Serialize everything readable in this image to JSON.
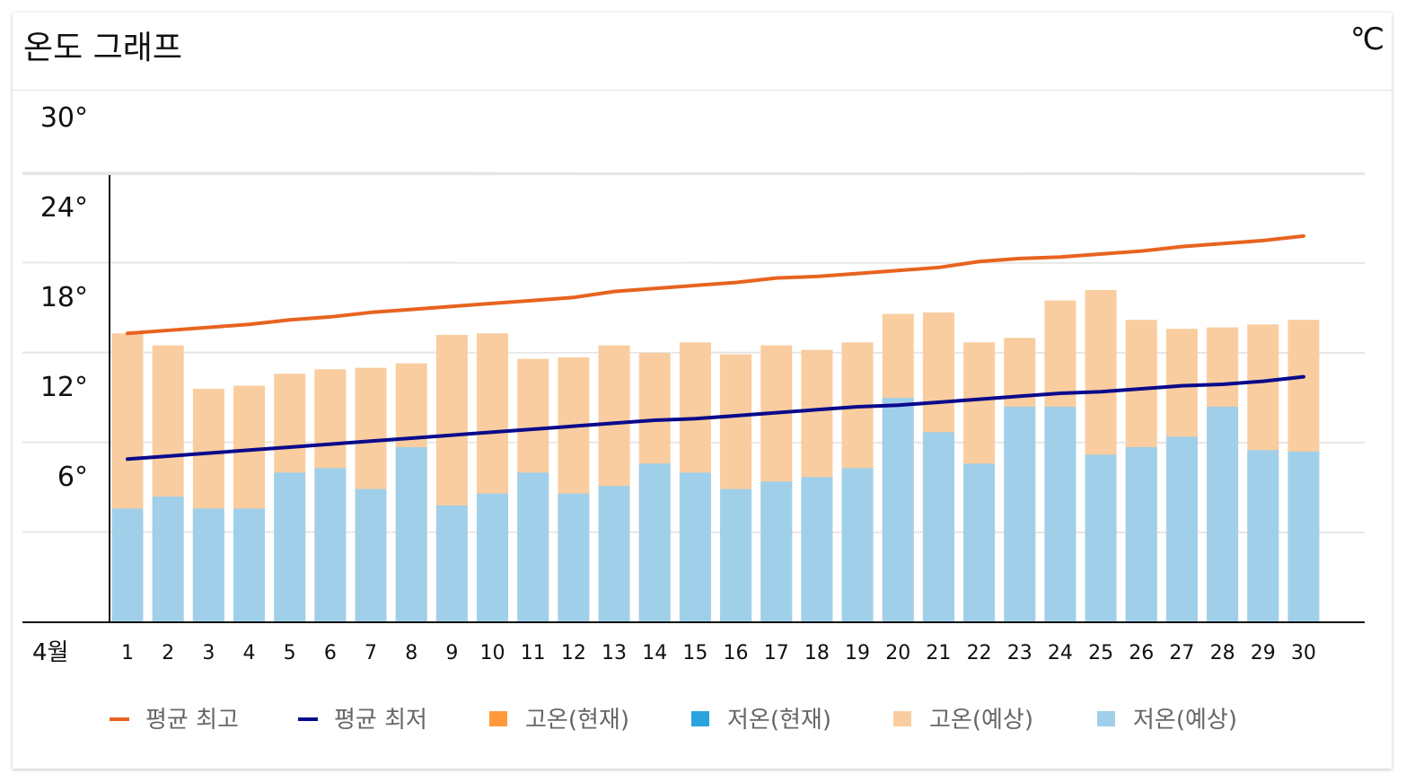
{
  "header": {
    "title": "온도 그래프",
    "unit": "℃"
  },
  "colors": {
    "avg_high": "#E8631F",
    "avg_low": "#0A0A8C",
    "high_current": "#FF9A3C",
    "low_current": "#2AA3E0",
    "high_forecast": "#F9CD9F",
    "low_forecast": "#A0CFEA",
    "grid": "#E6E6E6",
    "axis": "#111111"
  },
  "chart_data": {
    "type": "bar",
    "title": "",
    "x_axis_label": "4월",
    "categories": [
      "1",
      "2",
      "3",
      "4",
      "5",
      "6",
      "7",
      "8",
      "9",
      "10",
      "11",
      "12",
      "13",
      "14",
      "15",
      "16",
      "17",
      "18",
      "19",
      "20",
      "21",
      "22",
      "23",
      "24",
      "25",
      "26",
      "27",
      "28",
      "29",
      "30"
    ],
    "yticks": [
      "6°",
      "12°",
      "18°",
      "24°",
      "30°"
    ],
    "ylim": [
      0,
      30
    ],
    "grid": true,
    "legend_position": "bottom",
    "series": [
      {
        "name": "고온(예상)",
        "type": "bar",
        "values": [
          19.3,
          18.5,
          15.6,
          15.8,
          16.6,
          16.9,
          17.0,
          17.3,
          19.2,
          19.3,
          17.6,
          17.7,
          18.5,
          18.0,
          18.7,
          17.9,
          18.5,
          18.2,
          18.7,
          20.6,
          20.7,
          18.7,
          19.0,
          21.5,
          22.2,
          20.2,
          19.6,
          19.7,
          19.9,
          20.2
        ]
      },
      {
        "name": "저온(예상)",
        "type": "bar",
        "values": [
          7.6,
          8.4,
          7.6,
          7.6,
          10.0,
          10.3,
          8.9,
          11.7,
          7.8,
          8.6,
          10.0,
          8.6,
          9.1,
          10.6,
          10.0,
          8.9,
          9.4,
          9.7,
          10.3,
          15.0,
          12.7,
          10.6,
          14.4,
          14.4,
          11.2,
          11.7,
          12.4,
          14.4,
          11.5,
          11.4
        ]
      },
      {
        "name": "평균 최고",
        "type": "line",
        "values": [
          19.3,
          19.5,
          19.7,
          19.9,
          20.2,
          20.4,
          20.7,
          20.9,
          21.1,
          21.3,
          21.5,
          21.7,
          22.1,
          22.3,
          22.5,
          22.7,
          23.0,
          23.1,
          23.3,
          23.5,
          23.7,
          24.1,
          24.3,
          24.4,
          24.6,
          24.8,
          25.1,
          25.3,
          25.5,
          25.8
        ]
      },
      {
        "name": "평균 최저",
        "type": "line",
        "values": [
          10.9,
          11.1,
          11.3,
          11.5,
          11.7,
          11.9,
          12.1,
          12.3,
          12.5,
          12.7,
          12.9,
          13.1,
          13.3,
          13.5,
          13.6,
          13.8,
          14.0,
          14.2,
          14.4,
          14.5,
          14.7,
          14.9,
          15.1,
          15.3,
          15.4,
          15.6,
          15.8,
          15.9,
          16.1,
          16.4
        ]
      }
    ],
    "legend": [
      {
        "label": "평균 최고",
        "kind": "line",
        "color": "#E8631F"
      },
      {
        "label": "평균 최저",
        "kind": "line",
        "color": "#0A0A8C"
      },
      {
        "label": "고온(현재)",
        "kind": "box",
        "color": "#FF9A3C"
      },
      {
        "label": "저온(현재)",
        "kind": "box",
        "color": "#2AA3E0"
      },
      {
        "label": "고온(예상)",
        "kind": "box",
        "color": "#F9CD9F"
      },
      {
        "label": "저온(예상)",
        "kind": "box",
        "color": "#A0CFEA"
      }
    ]
  }
}
